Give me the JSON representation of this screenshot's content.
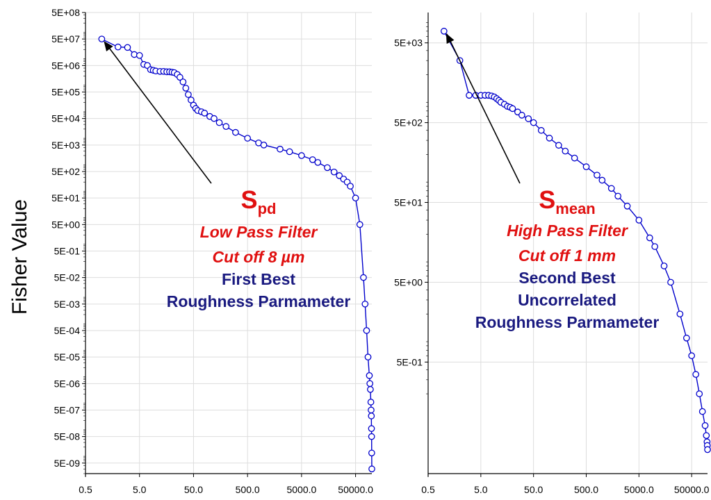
{
  "y_axis_label": "Fisher Value",
  "chart_data": [
    {
      "type": "scatter",
      "x_scale": "log",
      "y_scale": "log",
      "grid": true,
      "ylim": [
        2e-09,
        500000000.0
      ],
      "xlim": [
        0.5,
        100000
      ],
      "x_ticks": [
        {
          "value": 0.5,
          "label": "0.5"
        },
        {
          "value": 5,
          "label": "5.0"
        },
        {
          "value": 50,
          "label": "50.0"
        },
        {
          "value": 500,
          "label": "500.0"
        },
        {
          "value": 5000,
          "label": "5000.0"
        },
        {
          "value": 50000,
          "label": "50000.0"
        }
      ],
      "y_ticks": [
        {
          "value": 500000000.0,
          "label": "5E+08"
        },
        {
          "value": 50000000.0,
          "label": "5E+07"
        },
        {
          "value": 5000000.0,
          "label": "5E+06"
        },
        {
          "value": 500000.0,
          "label": "5E+05"
        },
        {
          "value": 50000.0,
          "label": "5E+04"
        },
        {
          "value": 5000.0,
          "label": "5E+03"
        },
        {
          "value": 500.0,
          "label": "5E+02"
        },
        {
          "value": 50.0,
          "label": "5E+01"
        },
        {
          "value": 5,
          "label": "5E+00"
        },
        {
          "value": 0.5,
          "label": "5E-01"
        },
        {
          "value": 0.05,
          "label": "5E-02"
        },
        {
          "value": 0.005,
          "label": "5E-03"
        },
        {
          "value": 0.0005,
          "label": "5E-04"
        },
        {
          "value": 5e-05,
          "label": "5E-05"
        },
        {
          "value": 5e-06,
          "label": "5E-06"
        },
        {
          "value": 5e-07,
          "label": "5E-07"
        },
        {
          "value": 5e-08,
          "label": "5E-08"
        },
        {
          "value": 5e-09,
          "label": "5E-09"
        }
      ],
      "series": [
        {
          "color": "#0000cc",
          "x": [
            1,
            2,
            3,
            4,
            5,
            6,
            7,
            8,
            9,
            10,
            12,
            14,
            16,
            18,
            20,
            22,
            25,
            28,
            32,
            36,
            40,
            45,
            50,
            55,
            60,
            70,
            80,
            100,
            120,
            150,
            200,
            300,
            500,
            800,
            1000,
            2000,
            3000,
            5000,
            8000,
            10000,
            15000,
            20000,
            25000,
            30000,
            35000,
            40000,
            50000,
            60000,
            70000,
            75000,
            80000,
            85000,
            90000,
            92000,
            94000,
            96000,
            97000,
            98000,
            98500,
            99000,
            99500,
            100000
          ],
          "y": [
            50000000.0,
            25000000.0,
            24000000.0,
            13000000.0,
            12000000.0,
            5500000.0,
            5000000.0,
            3500000.0,
            3300000.0,
            3100000.0,
            3000000.0,
            3000000.0,
            2900000.0,
            2900000.0,
            2800000.0,
            2700000.0,
            2300000.0,
            1800000.0,
            1200000.0,
            700000.0,
            400000.0,
            250000.0,
            160000.0,
            120000.0,
            100000.0,
            90000.0,
            80000.0,
            60000.0,
            50000.0,
            35000.0,
            25000.0,
            15000.0,
            9000,
            6000,
            5000,
            3500,
            2800,
            2000,
            1400,
            1100,
            700,
            480,
            350,
            260,
            200,
            140,
            50,
            5,
            0.05,
            0.005,
            0.0005,
            5e-05,
            1e-05,
            5e-06,
            3e-06,
            1e-06,
            5e-07,
            3e-07,
            1e-07,
            5e-08,
            1.2e-08,
            3e-09
          ]
        }
      ],
      "annotation": {
        "symbol": "S",
        "subscript": "pd",
        "filter": "Low Pass Filter",
        "cutoff": "Cut off 8 µm",
        "rank_lines": [
          "First Best",
          "Roughness Parmameter"
        ],
        "arrow_target": {
          "x": 1,
          "y": 50000000.0
        }
      }
    },
    {
      "type": "scatter",
      "x_scale": "log",
      "y_scale": "log",
      "grid": true,
      "ylim": [
        0.02,
        12000
      ],
      "xlim": [
        0.5,
        100000
      ],
      "x_ticks": [
        {
          "value": 0.5,
          "label": "0.5"
        },
        {
          "value": 5,
          "label": "5.0"
        },
        {
          "value": 50,
          "label": "50.0"
        },
        {
          "value": 500,
          "label": "500.0"
        },
        {
          "value": 5000,
          "label": "5000.0"
        },
        {
          "value": 50000,
          "label": "50000.0"
        }
      ],
      "y_ticks": [
        {
          "value": 5000,
          "label": "5E+03"
        },
        {
          "value": 500,
          "label": "5E+02"
        },
        {
          "value": 50,
          "label": "5E+01"
        },
        {
          "value": 5,
          "label": "5E+00"
        },
        {
          "value": 0.5,
          "label": "5E-01"
        }
      ],
      "series": [
        {
          "color": "#0000cc",
          "x": [
            1,
            2,
            3,
            4,
            5,
            6,
            7,
            8,
            9,
            10,
            11,
            12,
            14,
            16,
            18,
            20,
            25,
            30,
            40,
            50,
            70,
            100,
            150,
            200,
            300,
            500,
            800,
            1000,
            1500,
            2000,
            3000,
            5000,
            8000,
            10000,
            15000,
            20000,
            30000,
            40000,
            50000,
            60000,
            70000,
            80000,
            90000,
            95000,
            98000,
            99000,
            100000
          ],
          "y": [
            7000,
            3000,
            1100,
            1100,
            1100,
            1100,
            1100,
            1080,
            1050,
            1000,
            950,
            900,
            850,
            800,
            780,
            750,
            680,
            620,
            560,
            500,
            400,
            320,
            260,
            220,
            180,
            140,
            110,
            95,
            75,
            60,
            45,
            30,
            18,
            14,
            8,
            5,
            2,
            1,
            0.6,
            0.35,
            0.2,
            0.12,
            0.08,
            0.06,
            0.05,
            0.045,
            0.04
          ]
        }
      ],
      "annotation": {
        "symbol": "S",
        "subscript": "mean",
        "filter": "High Pass Filter",
        "cutoff": "Cut off 1 mm",
        "rank_lines": [
          "Second Best",
          "Uncorrelated",
          "Roughness Parmameter"
        ],
        "arrow_target": {
          "x": 1,
          "y": 7000
        }
      }
    }
  ]
}
